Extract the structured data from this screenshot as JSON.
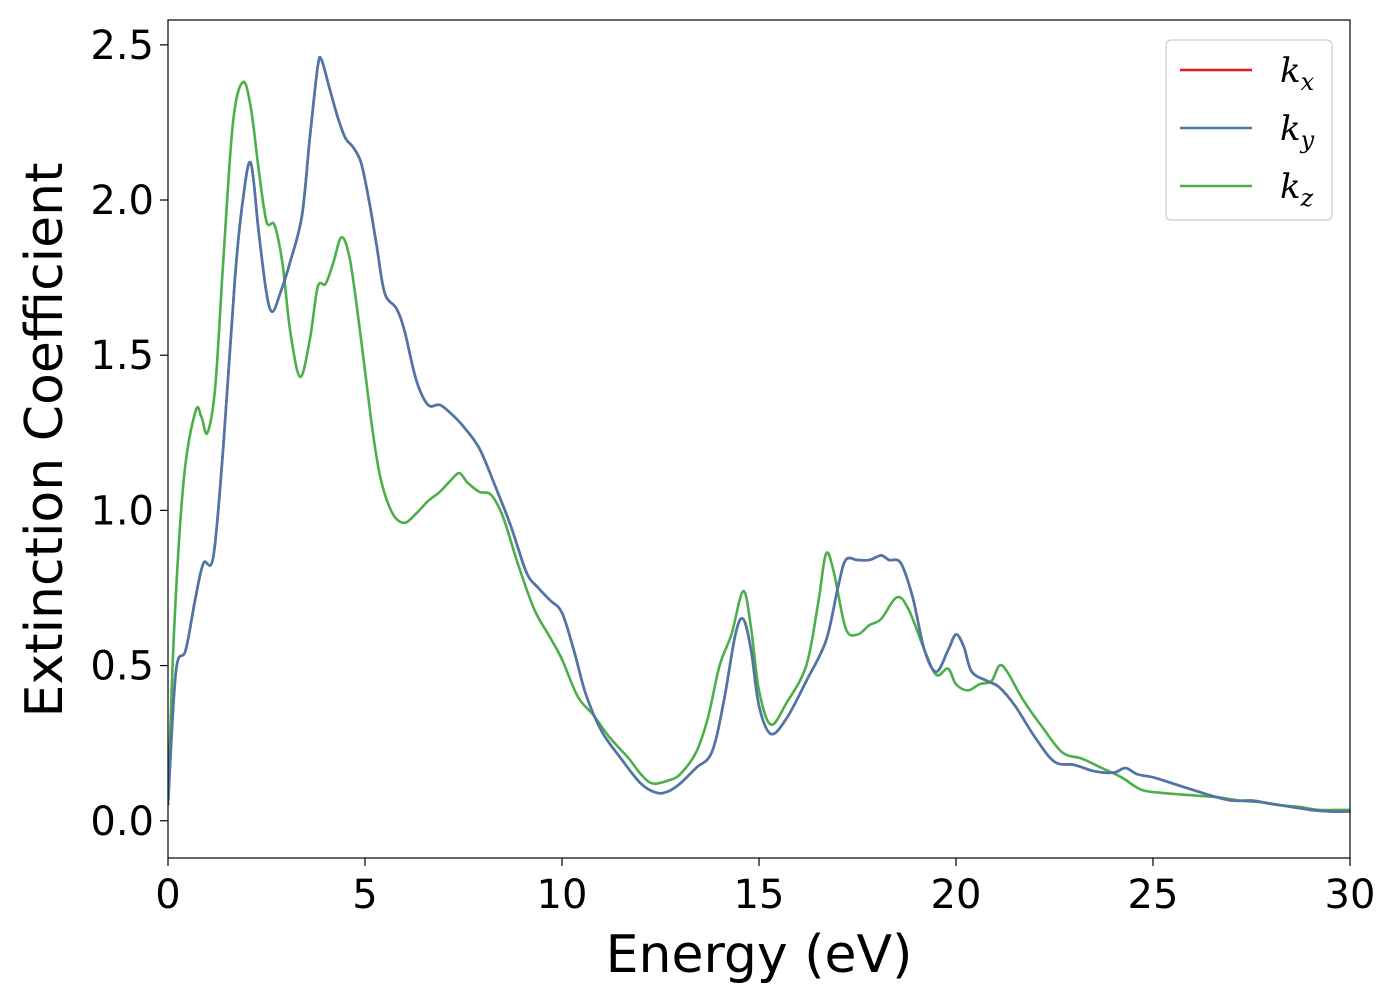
{
  "chart_data": {
    "type": "line",
    "title": "",
    "xlabel": "Energy (eV)",
    "ylabel": "Extinction Coefficient",
    "xlim": [
      0,
      30
    ],
    "ylim": [
      -0.12,
      2.58
    ],
    "xticks": [
      0,
      5,
      10,
      15,
      20,
      25,
      30
    ],
    "xtick_labels": [
      "0",
      "5",
      "10",
      "15",
      "20",
      "25",
      "30"
    ],
    "yticks": [
      0.0,
      0.5,
      1.0,
      1.5,
      2.0,
      2.5
    ],
    "ytick_labels": [
      "0.0",
      "0.5",
      "1.0",
      "1.5",
      "2.0",
      "2.5"
    ],
    "grid": false,
    "legend": "top-right",
    "series": [
      {
        "name": "k",
        "subscript": "x",
        "color": "#e41a1c",
        "points": [
          [
            0,
            0.05
          ],
          [
            0.2,
            0.48
          ],
          [
            0.45,
            0.55
          ],
          [
            0.7,
            0.72
          ],
          [
            0.9,
            0.83
          ],
          [
            1.15,
            0.85
          ],
          [
            1.4,
            1.2
          ],
          [
            1.7,
            1.75
          ],
          [
            1.9,
            2.0
          ],
          [
            2.1,
            2.12
          ],
          [
            2.3,
            1.9
          ],
          [
            2.5,
            1.7
          ],
          [
            2.65,
            1.64
          ],
          [
            2.85,
            1.7
          ],
          [
            3.1,
            1.8
          ],
          [
            3.4,
            1.95
          ],
          [
            3.6,
            2.2
          ],
          [
            3.8,
            2.43
          ],
          [
            3.9,
            2.45
          ],
          [
            4.1,
            2.36
          ],
          [
            4.3,
            2.27
          ],
          [
            4.5,
            2.2
          ],
          [
            4.7,
            2.17
          ],
          [
            4.9,
            2.12
          ],
          [
            5.1,
            2.0
          ],
          [
            5.3,
            1.85
          ],
          [
            5.5,
            1.7
          ],
          [
            5.8,
            1.65
          ],
          [
            6.0,
            1.58
          ],
          [
            6.3,
            1.42
          ],
          [
            6.6,
            1.34
          ],
          [
            6.9,
            1.34
          ],
          [
            7.2,
            1.31
          ],
          [
            7.5,
            1.27
          ],
          [
            7.9,
            1.2
          ],
          [
            8.3,
            1.08
          ],
          [
            8.7,
            0.95
          ],
          [
            9.1,
            0.8
          ],
          [
            9.4,
            0.75
          ],
          [
            9.7,
            0.71
          ],
          [
            10.0,
            0.67
          ],
          [
            10.3,
            0.55
          ],
          [
            10.6,
            0.41
          ],
          [
            11.0,
            0.29
          ],
          [
            11.5,
            0.2
          ],
          [
            12.0,
            0.12
          ],
          [
            12.4,
            0.09
          ],
          [
            12.7,
            0.095
          ],
          [
            13.0,
            0.12
          ],
          [
            13.4,
            0.17
          ],
          [
            13.8,
            0.22
          ],
          [
            14.1,
            0.38
          ],
          [
            14.4,
            0.6
          ],
          [
            14.6,
            0.65
          ],
          [
            14.8,
            0.55
          ],
          [
            15.0,
            0.37
          ],
          [
            15.3,
            0.28
          ],
          [
            15.7,
            0.33
          ],
          [
            16.2,
            0.45
          ],
          [
            16.7,
            0.58
          ],
          [
            17.0,
            0.75
          ],
          [
            17.2,
            0.84
          ],
          [
            17.5,
            0.84
          ],
          [
            17.8,
            0.84
          ],
          [
            18.1,
            0.855
          ],
          [
            18.3,
            0.84
          ],
          [
            18.6,
            0.83
          ],
          [
            18.9,
            0.72
          ],
          [
            19.2,
            0.55
          ],
          [
            19.5,
            0.48
          ],
          [
            19.8,
            0.55
          ],
          [
            20.0,
            0.6
          ],
          [
            20.2,
            0.56
          ],
          [
            20.4,
            0.48
          ],
          [
            20.8,
            0.45
          ],
          [
            21.1,
            0.43
          ],
          [
            21.5,
            0.37
          ],
          [
            22.0,
            0.27
          ],
          [
            22.5,
            0.19
          ],
          [
            23.0,
            0.18
          ],
          [
            23.5,
            0.16
          ],
          [
            24.0,
            0.155
          ],
          [
            24.3,
            0.17
          ],
          [
            24.6,
            0.15
          ],
          [
            25.0,
            0.14
          ],
          [
            25.5,
            0.12
          ],
          [
            26.0,
            0.1
          ],
          [
            26.5,
            0.08
          ],
          [
            27.0,
            0.065
          ],
          [
            27.5,
            0.065
          ],
          [
            28.0,
            0.055
          ],
          [
            28.5,
            0.045
          ],
          [
            29.0,
            0.035
          ],
          [
            29.5,
            0.03
          ],
          [
            30.0,
            0.03
          ]
        ]
      },
      {
        "name": "k",
        "subscript": "y",
        "color": "#4a78ad",
        "points": [
          [
            0,
            0.05
          ],
          [
            0.2,
            0.48
          ],
          [
            0.45,
            0.55
          ],
          [
            0.7,
            0.72
          ],
          [
            0.9,
            0.83
          ],
          [
            1.15,
            0.85
          ],
          [
            1.4,
            1.2
          ],
          [
            1.7,
            1.75
          ],
          [
            1.9,
            2.0
          ],
          [
            2.1,
            2.12
          ],
          [
            2.3,
            1.9
          ],
          [
            2.5,
            1.7
          ],
          [
            2.65,
            1.64
          ],
          [
            2.85,
            1.7
          ],
          [
            3.1,
            1.8
          ],
          [
            3.4,
            1.95
          ],
          [
            3.6,
            2.2
          ],
          [
            3.8,
            2.43
          ],
          [
            3.9,
            2.45
          ],
          [
            4.1,
            2.36
          ],
          [
            4.3,
            2.27
          ],
          [
            4.5,
            2.2
          ],
          [
            4.7,
            2.17
          ],
          [
            4.9,
            2.12
          ],
          [
            5.1,
            2.0
          ],
          [
            5.3,
            1.85
          ],
          [
            5.5,
            1.7
          ],
          [
            5.8,
            1.65
          ],
          [
            6.0,
            1.58
          ],
          [
            6.3,
            1.42
          ],
          [
            6.6,
            1.34
          ],
          [
            6.9,
            1.34
          ],
          [
            7.2,
            1.31
          ],
          [
            7.5,
            1.27
          ],
          [
            7.9,
            1.2
          ],
          [
            8.3,
            1.08
          ],
          [
            8.7,
            0.95
          ],
          [
            9.1,
            0.8
          ],
          [
            9.4,
            0.75
          ],
          [
            9.7,
            0.71
          ],
          [
            10.0,
            0.67
          ],
          [
            10.3,
            0.55
          ],
          [
            10.6,
            0.41
          ],
          [
            11.0,
            0.29
          ],
          [
            11.5,
            0.2
          ],
          [
            12.0,
            0.12
          ],
          [
            12.4,
            0.09
          ],
          [
            12.7,
            0.095
          ],
          [
            13.0,
            0.12
          ],
          [
            13.4,
            0.17
          ],
          [
            13.8,
            0.22
          ],
          [
            14.1,
            0.38
          ],
          [
            14.4,
            0.6
          ],
          [
            14.6,
            0.65
          ],
          [
            14.8,
            0.55
          ],
          [
            15.0,
            0.37
          ],
          [
            15.3,
            0.28
          ],
          [
            15.7,
            0.33
          ],
          [
            16.2,
            0.45
          ],
          [
            16.7,
            0.58
          ],
          [
            17.0,
            0.75
          ],
          [
            17.2,
            0.84
          ],
          [
            17.5,
            0.84
          ],
          [
            17.8,
            0.84
          ],
          [
            18.1,
            0.855
          ],
          [
            18.3,
            0.84
          ],
          [
            18.6,
            0.83
          ],
          [
            18.9,
            0.72
          ],
          [
            19.2,
            0.55
          ],
          [
            19.5,
            0.48
          ],
          [
            19.8,
            0.55
          ],
          [
            20.0,
            0.6
          ],
          [
            20.2,
            0.56
          ],
          [
            20.4,
            0.48
          ],
          [
            20.8,
            0.45
          ],
          [
            21.1,
            0.43
          ],
          [
            21.5,
            0.37
          ],
          [
            22.0,
            0.27
          ],
          [
            22.5,
            0.19
          ],
          [
            23.0,
            0.18
          ],
          [
            23.5,
            0.16
          ],
          [
            24.0,
            0.155
          ],
          [
            24.3,
            0.17
          ],
          [
            24.6,
            0.15
          ],
          [
            25.0,
            0.14
          ],
          [
            25.5,
            0.12
          ],
          [
            26.0,
            0.1
          ],
          [
            26.5,
            0.08
          ],
          [
            27.0,
            0.065
          ],
          [
            27.5,
            0.065
          ],
          [
            28.0,
            0.055
          ],
          [
            28.5,
            0.045
          ],
          [
            29.0,
            0.035
          ],
          [
            29.5,
            0.03
          ],
          [
            30.0,
            0.03
          ]
        ]
      },
      {
        "name": "k",
        "subscript": "z",
        "color": "#4daf4a",
        "points": [
          [
            0,
            0.05
          ],
          [
            0.15,
            0.6
          ],
          [
            0.4,
            1.1
          ],
          [
            0.7,
            1.32
          ],
          [
            0.85,
            1.3
          ],
          [
            1.0,
            1.25
          ],
          [
            1.2,
            1.4
          ],
          [
            1.4,
            1.8
          ],
          [
            1.65,
            2.25
          ],
          [
            1.9,
            2.38
          ],
          [
            2.1,
            2.3
          ],
          [
            2.3,
            2.1
          ],
          [
            2.5,
            1.93
          ],
          [
            2.7,
            1.92
          ],
          [
            2.9,
            1.8
          ],
          [
            3.1,
            1.58
          ],
          [
            3.35,
            1.43
          ],
          [
            3.6,
            1.55
          ],
          [
            3.8,
            1.72
          ],
          [
            4.0,
            1.73
          ],
          [
            4.2,
            1.8
          ],
          [
            4.4,
            1.88
          ],
          [
            4.6,
            1.82
          ],
          [
            4.8,
            1.65
          ],
          [
            5.0,
            1.45
          ],
          [
            5.2,
            1.25
          ],
          [
            5.4,
            1.1
          ],
          [
            5.7,
            0.99
          ],
          [
            6.0,
            0.96
          ],
          [
            6.3,
            0.99
          ],
          [
            6.6,
            1.03
          ],
          [
            6.9,
            1.06
          ],
          [
            7.2,
            1.1
          ],
          [
            7.4,
            1.12
          ],
          [
            7.6,
            1.09
          ],
          [
            7.9,
            1.06
          ],
          [
            8.2,
            1.05
          ],
          [
            8.5,
            0.98
          ],
          [
            8.9,
            0.82
          ],
          [
            9.3,
            0.68
          ],
          [
            9.7,
            0.59
          ],
          [
            10.0,
            0.52
          ],
          [
            10.4,
            0.4
          ],
          [
            10.8,
            0.34
          ],
          [
            11.2,
            0.27
          ],
          [
            11.7,
            0.2
          ],
          [
            12.0,
            0.15
          ],
          [
            12.3,
            0.12
          ],
          [
            12.7,
            0.13
          ],
          [
            13.0,
            0.15
          ],
          [
            13.4,
            0.22
          ],
          [
            13.7,
            0.33
          ],
          [
            14.0,
            0.5
          ],
          [
            14.3,
            0.6
          ],
          [
            14.6,
            0.74
          ],
          [
            14.8,
            0.62
          ],
          [
            15.0,
            0.42
          ],
          [
            15.3,
            0.31
          ],
          [
            15.7,
            0.38
          ],
          [
            16.2,
            0.5
          ],
          [
            16.5,
            0.7
          ],
          [
            16.7,
            0.86
          ],
          [
            16.9,
            0.8
          ],
          [
            17.2,
            0.62
          ],
          [
            17.5,
            0.6
          ],
          [
            17.8,
            0.63
          ],
          [
            18.1,
            0.65
          ],
          [
            18.5,
            0.72
          ],
          [
            18.8,
            0.68
          ],
          [
            19.2,
            0.55
          ],
          [
            19.5,
            0.47
          ],
          [
            19.8,
            0.49
          ],
          [
            20.0,
            0.44
          ],
          [
            20.3,
            0.42
          ],
          [
            20.6,
            0.44
          ],
          [
            20.9,
            0.45
          ],
          [
            21.1,
            0.5
          ],
          [
            21.3,
            0.48
          ],
          [
            21.7,
            0.39
          ],
          [
            22.2,
            0.3
          ],
          [
            22.7,
            0.22
          ],
          [
            23.2,
            0.2
          ],
          [
            23.7,
            0.17
          ],
          [
            24.2,
            0.14
          ],
          [
            24.7,
            0.1
          ],
          [
            25.2,
            0.09
          ],
          [
            25.7,
            0.085
          ],
          [
            26.2,
            0.08
          ],
          [
            26.7,
            0.075
          ],
          [
            27.2,
            0.065
          ],
          [
            27.7,
            0.06
          ],
          [
            28.2,
            0.05
          ],
          [
            28.7,
            0.045
          ],
          [
            29.2,
            0.035
          ],
          [
            29.6,
            0.035
          ],
          [
            30.0,
            0.035
          ]
        ]
      }
    ]
  }
}
